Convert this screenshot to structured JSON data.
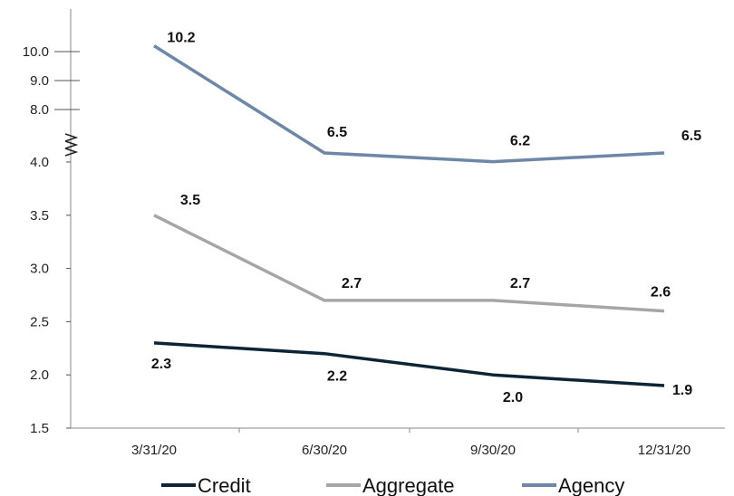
{
  "chart_data": {
    "type": "line",
    "categories": [
      "3/31/20",
      "6/30/20",
      "9/30/20",
      "12/31/20"
    ],
    "series": [
      {
        "name": "Credit",
        "values": [
          2.3,
          2.2,
          2.0,
          1.9
        ],
        "labels": [
          "2.3",
          "2.2",
          "2.0",
          "1.9"
        ],
        "color": "#0d2436"
      },
      {
        "name": "Aggregate",
        "values": [
          3.5,
          2.7,
          2.7,
          2.6
        ],
        "labels": [
          "3.5",
          "2.7",
          "2.7",
          "2.6"
        ],
        "color": "#a6a6a6"
      },
      {
        "name": "Agency",
        "values": [
          10.2,
          6.5,
          6.2,
          6.5
        ],
        "labels": [
          "10.2",
          "6.5",
          "6.2",
          "6.5"
        ],
        "color": "#6c87a8"
      }
    ],
    "y_ticks_lower": [
      "1.5",
      "2.0",
      "2.5",
      "3.0",
      "3.5",
      "4.0"
    ],
    "y_ticks_upper": [
      "8.0",
      "9.0",
      "10.0"
    ],
    "y_axis_break": true,
    "ylim": [
      1.5,
      10.0
    ],
    "grid": false,
    "legend": "bottom",
    "title": "",
    "xlabel": "",
    "ylabel": ""
  }
}
